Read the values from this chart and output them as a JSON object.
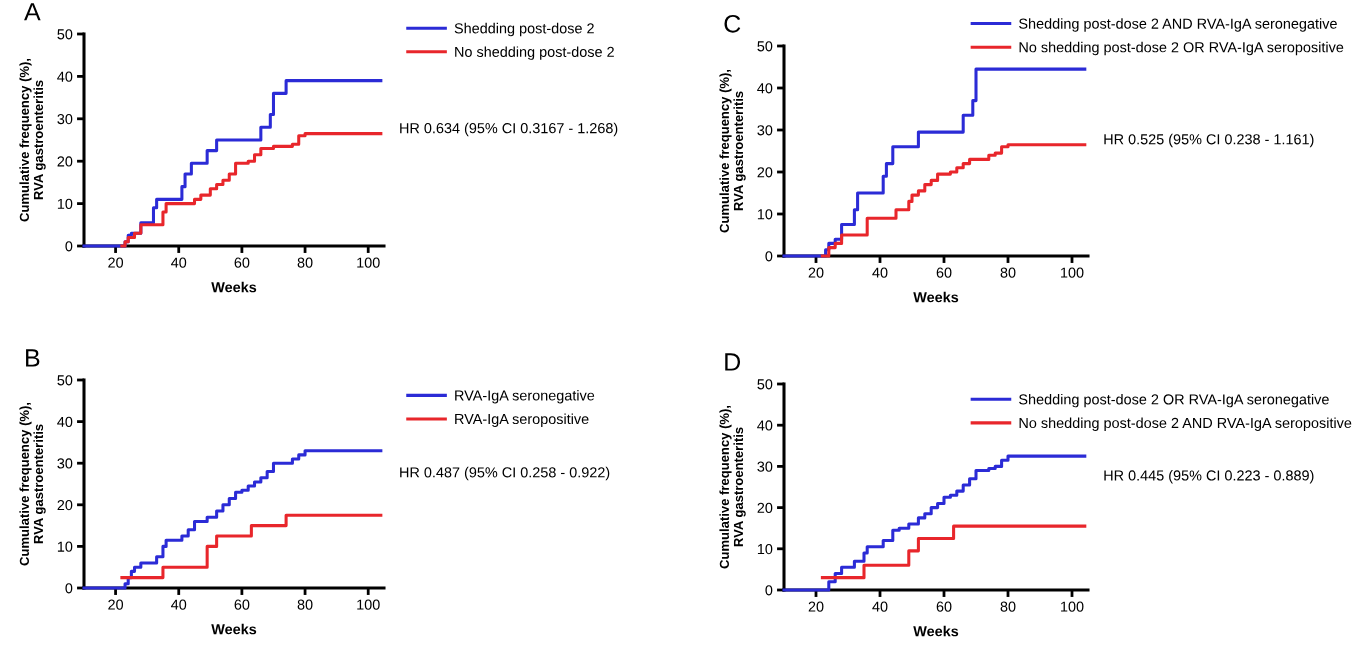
{
  "chart_data": [
    {
      "type": "step",
      "title": "A",
      "xlabel": "Weeks",
      "ylabel": "Cumulative frequency (%),\nRVA gastroenteritis",
      "xlim": [
        10,
        105
      ],
      "ylim": [
        0,
        50
      ],
      "xticks": [
        20,
        40,
        60,
        80,
        100
      ],
      "yticks": [
        0,
        10,
        20,
        30,
        40,
        50
      ],
      "legend": "top right",
      "grid": false,
      "annotations": [
        "HR 0.634 (95% CI 0.3167 - 1.268)"
      ],
      "series": [
        {
          "name": "Shedding post-dose 2",
          "color": "#2b2bd6",
          "x": [
            10,
            22,
            23,
            24,
            25,
            28,
            32,
            33,
            41,
            42,
            44,
            49,
            52,
            66,
            68,
            69,
            70,
            74,
            104
          ],
          "values": [
            0,
            0,
            1,
            2.5,
            3,
            5.5,
            9,
            11,
            14,
            17,
            19.5,
            22.5,
            25,
            28,
            28,
            31,
            36,
            39,
            39
          ]
        },
        {
          "name": "No shedding post-dose 2",
          "color": "#e8262b",
          "x": [
            22,
            23,
            24,
            26,
            28,
            34,
            35,
            36,
            44,
            45,
            47,
            49,
            50,
            52,
            54,
            56,
            58,
            62,
            64,
            66,
            70,
            72,
            76,
            78,
            80,
            104
          ],
          "values": [
            0,
            1,
            2,
            3,
            5,
            5,
            8,
            10,
            10,
            11,
            12,
            12,
            13.5,
            14.5,
            15.5,
            17,
            19.5,
            20,
            21.5,
            23,
            23.5,
            23.5,
            24,
            26,
            26.5,
            26.5
          ]
        }
      ]
    },
    {
      "type": "step",
      "title": "C",
      "xlabel": "Weeks",
      "ylabel": "Cumulative frequency (%),\nRVA gastroenteritis",
      "xlim": [
        10,
        105
      ],
      "ylim": [
        0,
        50
      ],
      "xticks": [
        20,
        40,
        60,
        80,
        100
      ],
      "yticks": [
        0,
        10,
        20,
        30,
        40,
        50
      ],
      "legend": "top right",
      "grid": false,
      "annotations": [
        "HR 0.525 (95% CI 0.238 - 1.161)"
      ],
      "series": [
        {
          "name": "Shedding post-dose 2 AND RVA-IgA seronegative",
          "color": "#2b2bd6",
          "x": [
            10,
            22,
            23,
            24,
            26,
            28,
            32,
            33,
            41,
            42,
            44,
            52,
            66,
            69,
            70,
            104
          ],
          "values": [
            0,
            0,
            1.5,
            3,
            4,
            7.5,
            11,
            15,
            19,
            22,
            26,
            29.5,
            33.5,
            37,
            44.5,
            44.5
          ]
        },
        {
          "name": "No shedding post-dose 2 OR RVA-IgA seropositive",
          "color": "#e8262b",
          "x": [
            22,
            24,
            26,
            28,
            35,
            36,
            44,
            45,
            49,
            50,
            52,
            54,
            56,
            58,
            62,
            64,
            66,
            68,
            74,
            76,
            78,
            80,
            104
          ],
          "values": [
            0,
            2,
            3,
            5,
            5,
            9,
            9,
            11,
            13,
            14.5,
            15.5,
            17,
            18,
            19.5,
            20,
            21,
            22,
            23,
            24,
            24.5,
            26,
            26.5,
            26.5
          ]
        }
      ]
    },
    {
      "type": "step",
      "title": "B",
      "xlabel": "Weeks",
      "ylabel": "Cumulative frequency (%),\nRVA gastroenteritis",
      "xlim": [
        10,
        105
      ],
      "ylim": [
        0,
        50
      ],
      "xticks": [
        20,
        40,
        60,
        80,
        100
      ],
      "yticks": [
        0,
        10,
        20,
        30,
        40,
        50
      ],
      "legend": "top right",
      "grid": false,
      "annotations": [
        "HR 0.487 (95% CI 0.258 - 0.922)"
      ],
      "series": [
        {
          "name": "RVA-IgA seronegative",
          "color": "#2b2bd6",
          "x": [
            10,
            22,
            23,
            24,
            25,
            26,
            28,
            33,
            35,
            36,
            41,
            43,
            45,
            49,
            52,
            54,
            56,
            58,
            60,
            62,
            64,
            66,
            68,
            70,
            76,
            78,
            80,
            104
          ],
          "values": [
            0,
            0,
            1,
            2.5,
            4,
            5,
            6,
            7.5,
            10,
            11.5,
            12.5,
            14,
            16,
            17,
            18.5,
            20,
            21.5,
            23,
            23.5,
            24.5,
            25.5,
            26.5,
            28,
            30,
            31,
            32,
            33,
            33
          ]
        },
        {
          "name": "RVA-IgA seropositive",
          "color": "#e8262b",
          "x": [
            22,
            35,
            49,
            52,
            63,
            74,
            104
          ],
          "values": [
            2.5,
            5,
            10,
            12.5,
            15,
            17.5,
            17.5
          ]
        }
      ]
    },
    {
      "type": "step",
      "title": "D",
      "xlabel": "Weeks",
      "ylabel": "Cumulative frequency (%),\nRVA gastroenteritis",
      "xlim": [
        10,
        105
      ],
      "ylim": [
        0,
        50
      ],
      "xticks": [
        20,
        40,
        60,
        80,
        100
      ],
      "yticks": [
        0,
        10,
        20,
        30,
        40,
        50
      ],
      "legend": "top right",
      "grid": false,
      "annotations": [
        "HR 0.445 (95% CI 0.223 - 0.889)"
      ],
      "series": [
        {
          "name": "Shedding post-dose 2 OR RVA-IgA seronegative",
          "color": "#2b2bd6",
          "x": [
            10,
            23,
            24,
            26,
            28,
            32,
            35,
            36,
            41,
            44,
            46,
            49,
            52,
            54,
            56,
            58,
            60,
            62,
            64,
            66,
            68,
            70,
            74,
            76,
            78,
            80,
            104
          ],
          "values": [
            0,
            0,
            2,
            4,
            5.5,
            7,
            9,
            10.5,
            12,
            14.5,
            15,
            16,
            17.5,
            18.5,
            20,
            21,
            22.5,
            23,
            24,
            25.5,
            27,
            29,
            29.5,
            30,
            31.5,
            32.5,
            32.5
          ]
        },
        {
          "name": "No shedding post-dose 2 AND RVA-IgA seropositive",
          "color": "#e8262b",
          "x": [
            22,
            35,
            49,
            52,
            63,
            104
          ],
          "values": [
            3,
            6,
            9.5,
            12.5,
            15.5,
            15.5
          ]
        }
      ]
    }
  ]
}
